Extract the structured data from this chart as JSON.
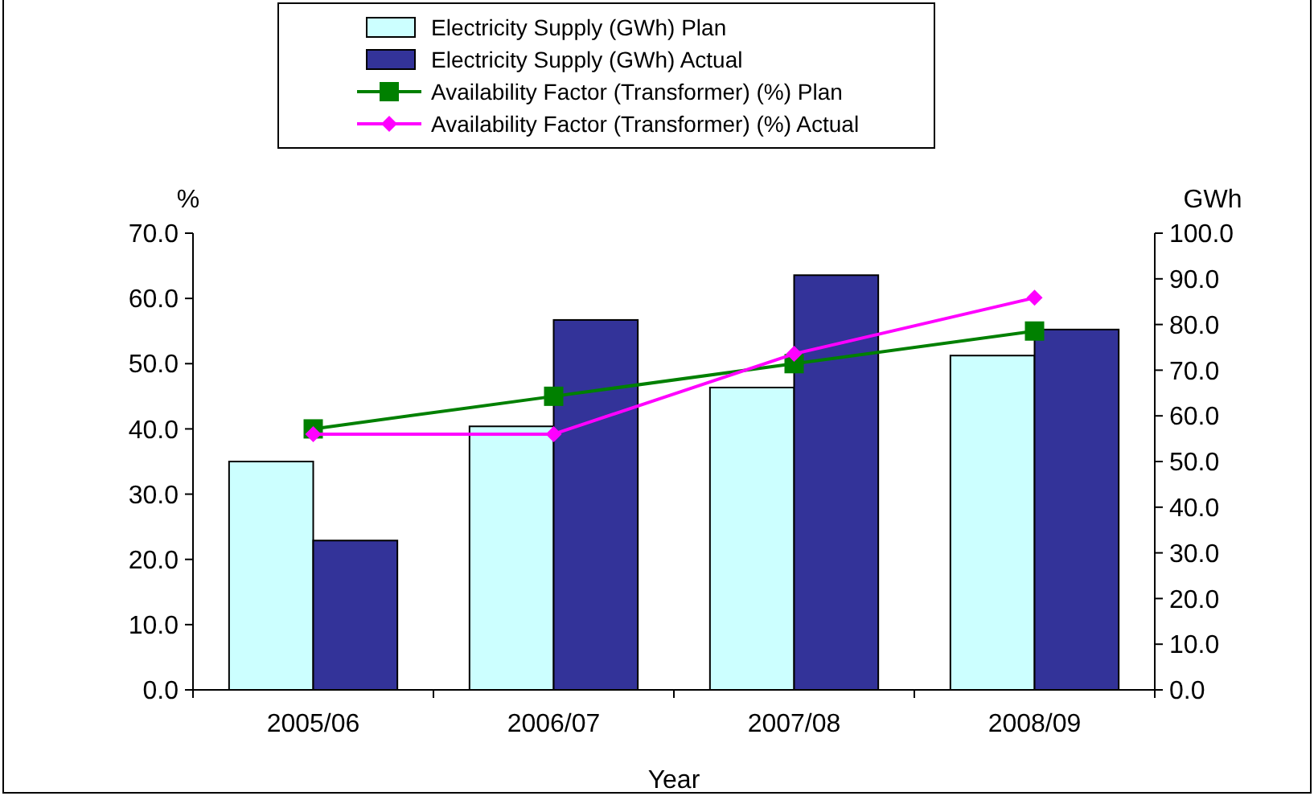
{
  "chart_data": {
    "type": "bar",
    "xlabel": "Year",
    "ylabel": "%",
    "y2label": "GWh",
    "categories": [
      "2005/06",
      "2006/07",
      "2007/08",
      "2008/09"
    ],
    "series": [
      {
        "name": "Electricity Supply  (GWh) Plan",
        "color": "#ccffff",
        "values": [
          50.0,
          57.7,
          66.2,
          73.2
        ],
        "axis": "y2"
      },
      {
        "name": "Electricity Supply  (GWh) Actual",
        "color": "#333399",
        "values": [
          32.7,
          81.0,
          90.8,
          78.9
        ],
        "axis": "y2"
      },
      {
        "name": "Availability Factor (Transformer) (%) Plan",
        "type": "line",
        "color": "#008000",
        "marker": "square",
        "values": [
          40.0,
          45.0,
          50.0,
          55.0
        ]
      },
      {
        "name": "Availability Factor (Transformer) (%) Actual",
        "type": "line",
        "color": "#ff00ff",
        "marker": "diamond",
        "values": [
          39.2,
          39.2,
          51.5,
          60.1
        ]
      }
    ],
    "ylim": [
      0,
      70
    ],
    "yticks": [
      {
        "value": 0,
        "label": "0.0"
      },
      {
        "value": 10,
        "label": "10.0"
      },
      {
        "value": 20,
        "label": "20.0"
      },
      {
        "value": 30,
        "label": "30.0"
      },
      {
        "value": 40,
        "label": "40.0"
      },
      {
        "value": 50,
        "label": "50.0"
      },
      {
        "value": 60,
        "label": "60.0"
      },
      {
        "value": 70,
        "label": "70.0"
      }
    ],
    "y2lim": [
      0,
      100
    ],
    "y2ticks": [
      {
        "value": 0,
        "label": "0.0"
      },
      {
        "value": 10,
        "label": "10.0"
      },
      {
        "value": 20,
        "label": "20.0"
      },
      {
        "value": 30,
        "label": "30.0"
      },
      {
        "value": 40,
        "label": "40.0"
      },
      {
        "value": 50,
        "label": "50.0"
      },
      {
        "value": 60,
        "label": "60.0"
      },
      {
        "value": 70,
        "label": "70.0"
      },
      {
        "value": 80,
        "label": "80.0"
      },
      {
        "value": 90,
        "label": "90.0"
      },
      {
        "value": 100,
        "label": "100.0"
      }
    ],
    "legend": "top",
    "grid": false
  }
}
